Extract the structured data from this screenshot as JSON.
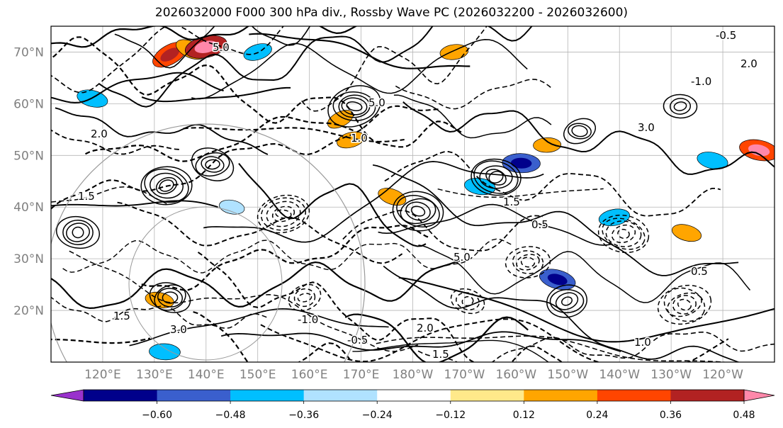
{
  "title": "2026032000 F000 300 hPa div., Rossby Wave PC (2026032200 - 2026032600)",
  "chart_data": {
    "type": "heatmap",
    "title": "2026032000 F000 300 hPa div., Rossby Wave PC (2026032200 - 2026032600)",
    "map": {
      "lon_range": [
        110,
        250
      ],
      "lat_range": [
        10,
        75
      ],
      "grid": true,
      "lat_ticks": [
        {
          "value": 20,
          "label": "20°N"
        },
        {
          "value": 30,
          "label": "30°N"
        },
        {
          "value": 40,
          "label": "40°N"
        },
        {
          "value": 50,
          "label": "50°N"
        },
        {
          "value": 60,
          "label": "60°N"
        },
        {
          "value": 70,
          "label": "70°N"
        }
      ],
      "lon_ticks": [
        {
          "value": 120,
          "label": "120°E"
        },
        {
          "value": 130,
          "label": "130°E"
        },
        {
          "value": 140,
          "label": "140°E"
        },
        {
          "value": 150,
          "label": "150°E"
        },
        {
          "value": 160,
          "label": "160°E"
        },
        {
          "value": 170,
          "label": "170°E"
        },
        {
          "value": 180,
          "label": "180°W"
        },
        {
          "value": 190,
          "label": "170°W"
        },
        {
          "value": 200,
          "label": "160°W"
        },
        {
          "value": 210,
          "label": "150°W"
        },
        {
          "value": 220,
          "label": "140°W"
        },
        {
          "value": 230,
          "label": "130°W"
        },
        {
          "value": 240,
          "label": "120°W"
        }
      ]
    },
    "colorbar": {
      "extend": "both",
      "levels": [
        -0.72,
        -0.6,
        -0.48,
        -0.36,
        -0.24,
        -0.12,
        0.12,
        0.24,
        0.36,
        0.48,
        0.6,
        0.72
      ],
      "colors": [
        "#9932CC",
        "#00008B",
        "#3A5FCD",
        "#00BFFF",
        "#B0E2FF",
        "#FFFFFF",
        "#FFE98A",
        "#FFA500",
        "#FF4500",
        "#B22222",
        "#FF88AA"
      ],
      "tick_values": [
        -0.6,
        -0.48,
        -0.36,
        -0.24,
        -0.12,
        0.12,
        0.24,
        0.36,
        0.48,
        0.6
      ],
      "tick_labels": [
        "−0.60",
        "−0.48",
        "−0.36",
        "−0.24",
        "−0.12",
        "0.12",
        "0.24",
        "0.36",
        "0.48",
        "0.60"
      ]
    },
    "filled_regions": [
      {
        "lon": 133,
        "lat": 69.5,
        "value": 0.42
      },
      {
        "lon": 137,
        "lat": 70.5,
        "value": 0.3
      },
      {
        "lon": 140,
        "lat": 71,
        "value": 0.5
      },
      {
        "lon": 150,
        "lat": 70,
        "value": -0.26
      },
      {
        "lon": 118,
        "lat": 61,
        "value": -0.3
      },
      {
        "lon": 201,
        "lat": 48.5,
        "value": -0.42
      },
      {
        "lon": 219,
        "lat": 38,
        "value": -0.3
      },
      {
        "lon": 233,
        "lat": 35,
        "value": 0.28
      },
      {
        "lon": 208,
        "lat": 26,
        "value": -0.4
      },
      {
        "lon": 132,
        "lat": 12,
        "value": -0.3
      },
      {
        "lon": 131,
        "lat": 22,
        "value": 0.26
      },
      {
        "lon": 193,
        "lat": 44,
        "value": -0.3
      },
      {
        "lon": 176,
        "lat": 42,
        "value": 0.26
      },
      {
        "lon": 168,
        "lat": 53,
        "value": 0.25
      },
      {
        "lon": 188,
        "lat": 70,
        "value": 0.25
      },
      {
        "lon": 238,
        "lat": 49,
        "value": -0.3
      },
      {
        "lon": 247,
        "lat": 51,
        "value": 0.45
      },
      {
        "lon": 166,
        "lat": 57,
        "value": 0.24
      },
      {
        "lon": 145,
        "lat": 40,
        "value": -0.2
      },
      {
        "lon": 206,
        "lat": 52,
        "value": 0.24
      }
    ],
    "contour_labels": [
      "5.0",
      "2.0",
      "1.5",
      "1.0",
      "0.5",
      "-0.5",
      "-1.0",
      "3.0",
      "1.5"
    ]
  }
}
